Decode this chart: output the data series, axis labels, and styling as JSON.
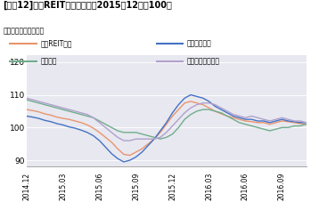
{
  "title": "[図表12]東証REIT指数の推移（2015年12末＝100）",
  "source": "出所：東京証券取引所",
  "xtick_labels": [
    "2014.12",
    "2015.03",
    "2015.06",
    "2015.09",
    "2015.12",
    "2016.03",
    "2016.06",
    "2016.09"
  ],
  "ylim": [
    88,
    122
  ],
  "yticks": [
    90,
    100,
    110,
    120
  ],
  "legend_labels": [
    "東証REIT指数",
    "オフィス指数",
    "住宅指数",
    "商業・物流等指数"
  ],
  "colors": [
    "#E8956D",
    "#4472C4",
    "#70AD8E",
    "#B0A0CC"
  ],
  "background_color": "#E8E8F0",
  "series": {
    "tosho_reit": [
      105.5,
      105.2,
      104.8,
      104.2,
      103.8,
      103.2,
      102.8,
      102.5,
      102.0,
      101.5,
      100.8,
      99.8,
      98.5,
      97.0,
      95.5,
      93.5,
      91.8,
      91.5,
      92.5,
      93.5,
      95.0,
      96.5,
      98.5,
      101.0,
      103.5,
      105.5,
      107.5,
      108.0,
      107.5,
      107.0,
      106.0,
      105.0,
      104.2,
      103.5,
      103.0,
      102.5,
      102.0,
      101.8,
      101.5,
      101.5,
      101.0,
      101.5,
      102.0,
      101.8,
      101.5,
      101.2,
      101.0
    ],
    "office": [
      103.5,
      103.2,
      102.8,
      102.2,
      101.8,
      101.2,
      100.8,
      100.2,
      99.8,
      99.2,
      98.5,
      97.5,
      96.0,
      94.0,
      92.0,
      90.5,
      89.5,
      90.0,
      91.0,
      92.5,
      94.5,
      96.5,
      99.0,
      101.5,
      104.5,
      107.0,
      109.0,
      110.0,
      109.5,
      109.0,
      108.0,
      106.5,
      105.5,
      104.5,
      103.5,
      103.0,
      102.5,
      102.5,
      102.0,
      102.0,
      101.5,
      102.0,
      102.5,
      102.0,
      101.8,
      101.5,
      101.5
    ],
    "housing": [
      108.5,
      108.0,
      107.5,
      107.0,
      106.5,
      106.0,
      105.5,
      105.0,
      104.5,
      104.0,
      103.5,
      103.0,
      102.0,
      101.0,
      100.0,
      99.0,
      98.5,
      98.5,
      98.5,
      98.0,
      97.5,
      97.0,
      96.5,
      97.0,
      98.0,
      100.0,
      102.5,
      104.0,
      105.0,
      105.5,
      105.5,
      105.0,
      104.5,
      103.5,
      102.5,
      101.5,
      101.0,
      100.5,
      100.0,
      99.5,
      99.0,
      99.5,
      100.0,
      100.0,
      100.5,
      100.5,
      101.0
    ],
    "commercial": [
      109.0,
      108.5,
      108.0,
      107.5,
      107.0,
      106.5,
      106.0,
      105.5,
      105.0,
      104.5,
      104.0,
      103.0,
      101.5,
      100.0,
      98.5,
      97.0,
      96.0,
      96.0,
      96.5,
      96.5,
      96.5,
      96.5,
      97.0,
      98.5,
      100.5,
      102.5,
      104.5,
      106.0,
      107.0,
      107.5,
      107.5,
      107.0,
      106.0,
      105.0,
      104.0,
      103.5,
      103.0,
      103.5,
      103.0,
      102.5,
      102.0,
      102.5,
      103.0,
      102.5,
      102.0,
      102.0,
      101.5
    ]
  },
  "n_points": 47,
  "xtick_positions": [
    0,
    6,
    12,
    18,
    24,
    30,
    36,
    42
  ]
}
